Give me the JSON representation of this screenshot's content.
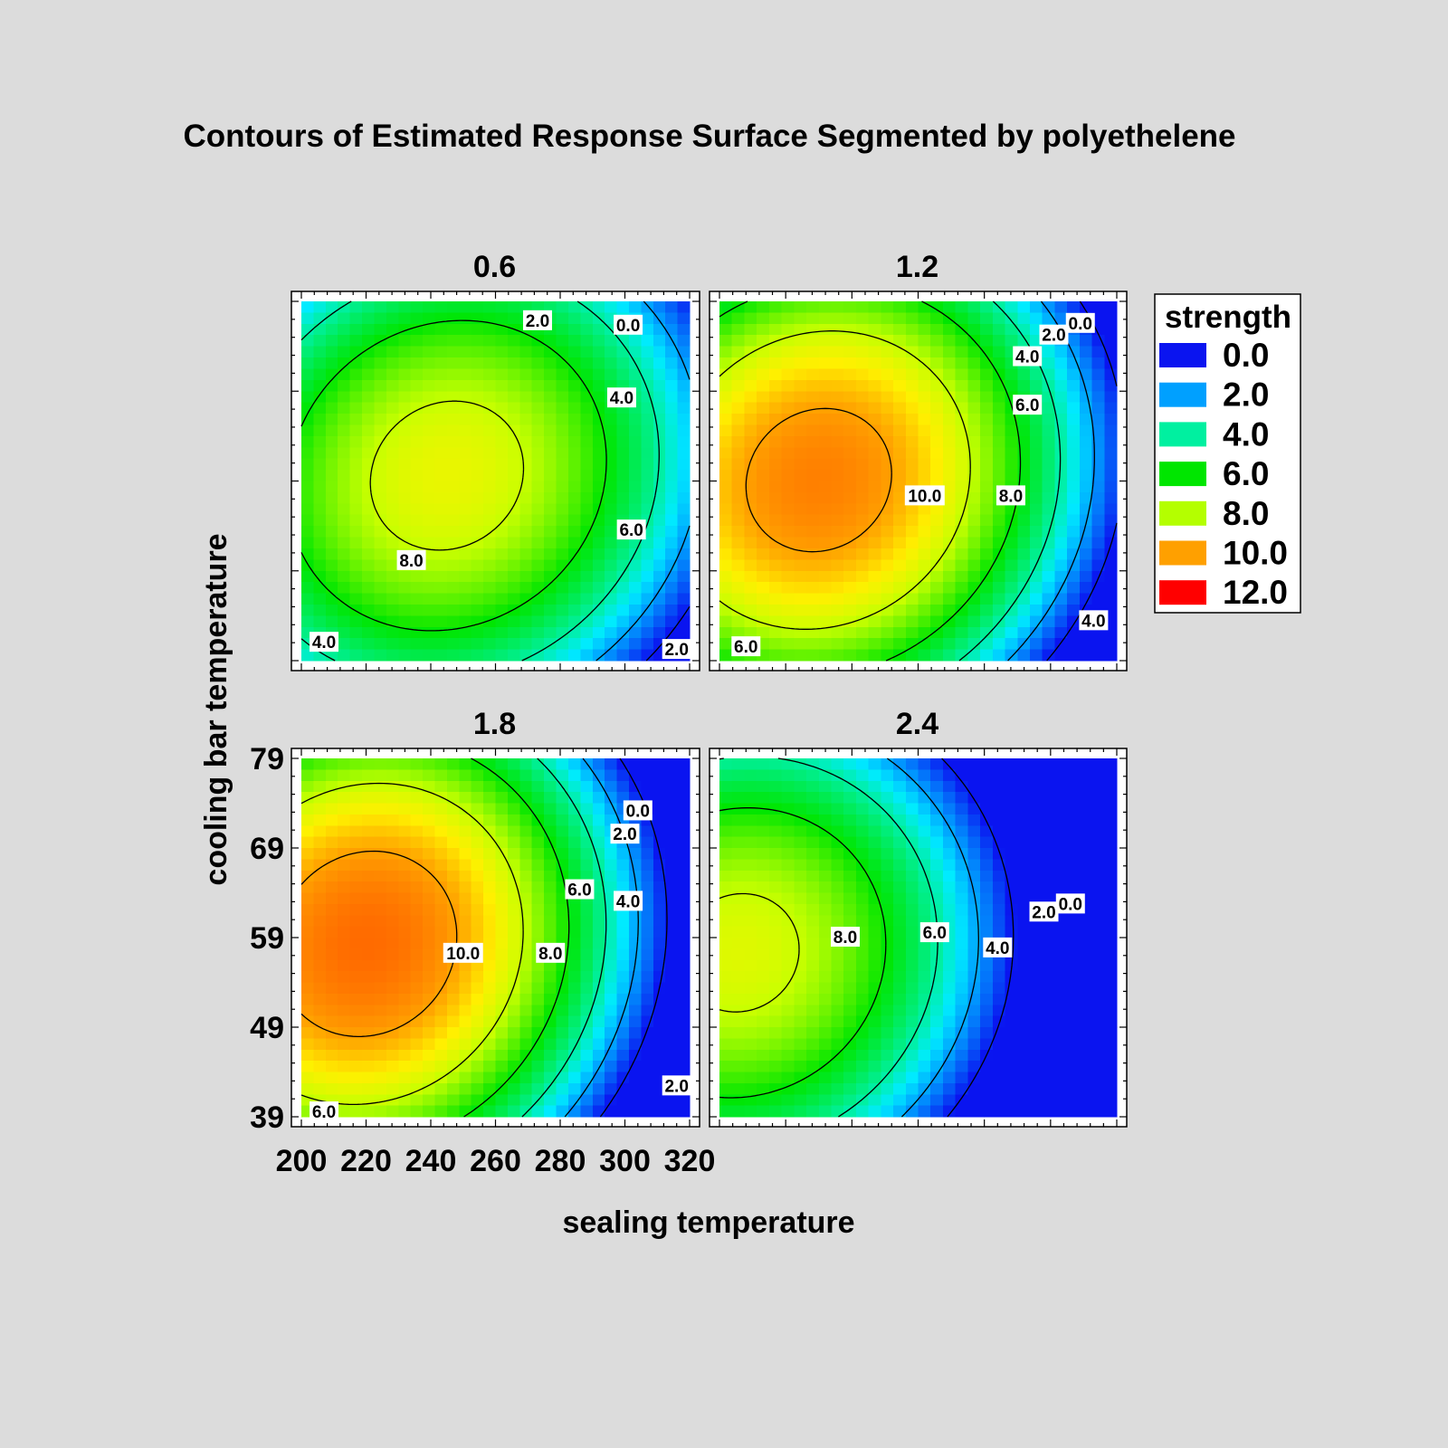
{
  "chart_data": {
    "type": "heatmap",
    "title": "Contours of Estimated Response Surface Segmented by polyethelene",
    "xlabel": "sealing temperature",
    "ylabel": "cooling bar temperature",
    "xlim": [
      200,
      320
    ],
    "ylim": [
      39,
      79
    ],
    "x_ticks": [
      "200",
      "220",
      "240",
      "260",
      "280",
      "300",
      "320"
    ],
    "y_ticks": [
      "39",
      "49",
      "59",
      "69",
      "79"
    ],
    "legend": {
      "title": "strength",
      "position": "right",
      "items": [
        {
          "label": "0.0",
          "color": "#0a14f0"
        },
        {
          "label": "2.0",
          "color": "#00a0ff"
        },
        {
          "label": "4.0",
          "color": "#00f0a0"
        },
        {
          "label": "6.0",
          "color": "#00e600"
        },
        {
          "label": "8.0",
          "color": "#b4ff00"
        },
        {
          "label": "10.0",
          "color": "#ffa000"
        },
        {
          "label": "12.0",
          "color": "#ff0000"
        }
      ]
    },
    "contour_levels": [
      0,
      2,
      4,
      6,
      8,
      10
    ],
    "panels": [
      {
        "name": "0.6",
        "peak": {
          "sealing": 245,
          "cooling": 59.6,
          "value": 8.6
        },
        "contour_labels": [
          {
            "text": "2.0",
            "x": 273,
            "y": 76.9
          },
          {
            "text": "0.0",
            "x": 301,
            "y": 76.4
          },
          {
            "text": "4.0",
            "x": 299,
            "y": 68.3
          },
          {
            "text": "6.0",
            "x": 302,
            "y": 53.6
          },
          {
            "text": "8.0",
            "x": 234,
            "y": 50.2
          },
          {
            "text": "4.0",
            "x": 207,
            "y": 41.1
          },
          {
            "text": "2.0",
            "x": 316,
            "y": 40.3
          }
        ]
      },
      {
        "name": "1.2",
        "peak": {
          "sealing": 230,
          "cooling": 59.1,
          "value": 10.6
        },
        "contour_labels": [
          {
            "text": "0.0",
            "x": 309,
            "y": 76.6
          },
          {
            "text": "2.0",
            "x": 301,
            "y": 75.3
          },
          {
            "text": "4.0",
            "x": 293,
            "y": 72.9
          },
          {
            "text": "6.0",
            "x": 293,
            "y": 67.5
          },
          {
            "text": "10.0",
            "x": 262,
            "y": 57.4
          },
          {
            "text": "8.0",
            "x": 288,
            "y": 57.4
          },
          {
            "text": "4.0",
            "x": 313,
            "y": 43.5
          },
          {
            "text": "6.0",
            "x": 208,
            "y": 40.6
          }
        ]
      },
      {
        "name": "1.8",
        "peak": {
          "sealing": 220,
          "cooling": 58.3,
          "value": 11.0
        },
        "contour_labels": [
          {
            "text": "0.0",
            "x": 304,
            "y": 73.2
          },
          {
            "text": "2.0",
            "x": 300,
            "y": 70.6
          },
          {
            "text": "6.0",
            "x": 286,
            "y": 64.4
          },
          {
            "text": "4.0",
            "x": 301,
            "y": 63.1
          },
          {
            "text": "10.0",
            "x": 250,
            "y": 57.3
          },
          {
            "text": "8.0",
            "x": 277,
            "y": 57.3
          },
          {
            "text": "2.0",
            "x": 316,
            "y": 42.5
          },
          {
            "text": "6.0",
            "x": 207,
            "y": 39.6
          }
        ]
      },
      {
        "name": "2.4",
        "peak": {
          "sealing": 206,
          "cooling": 57.3,
          "value": 8.4
        },
        "contour_labels": [
          {
            "text": "8.0",
            "x": 238,
            "y": 59.1
          },
          {
            "text": "6.0",
            "x": 265,
            "y": 59.6
          },
          {
            "text": "4.0",
            "x": 284,
            "y": 57.9
          },
          {
            "text": "2.0",
            "x": 298,
            "y": 61.9
          },
          {
            "text": "0.0",
            "x": 306,
            "y": 62.8
          }
        ]
      }
    ]
  }
}
